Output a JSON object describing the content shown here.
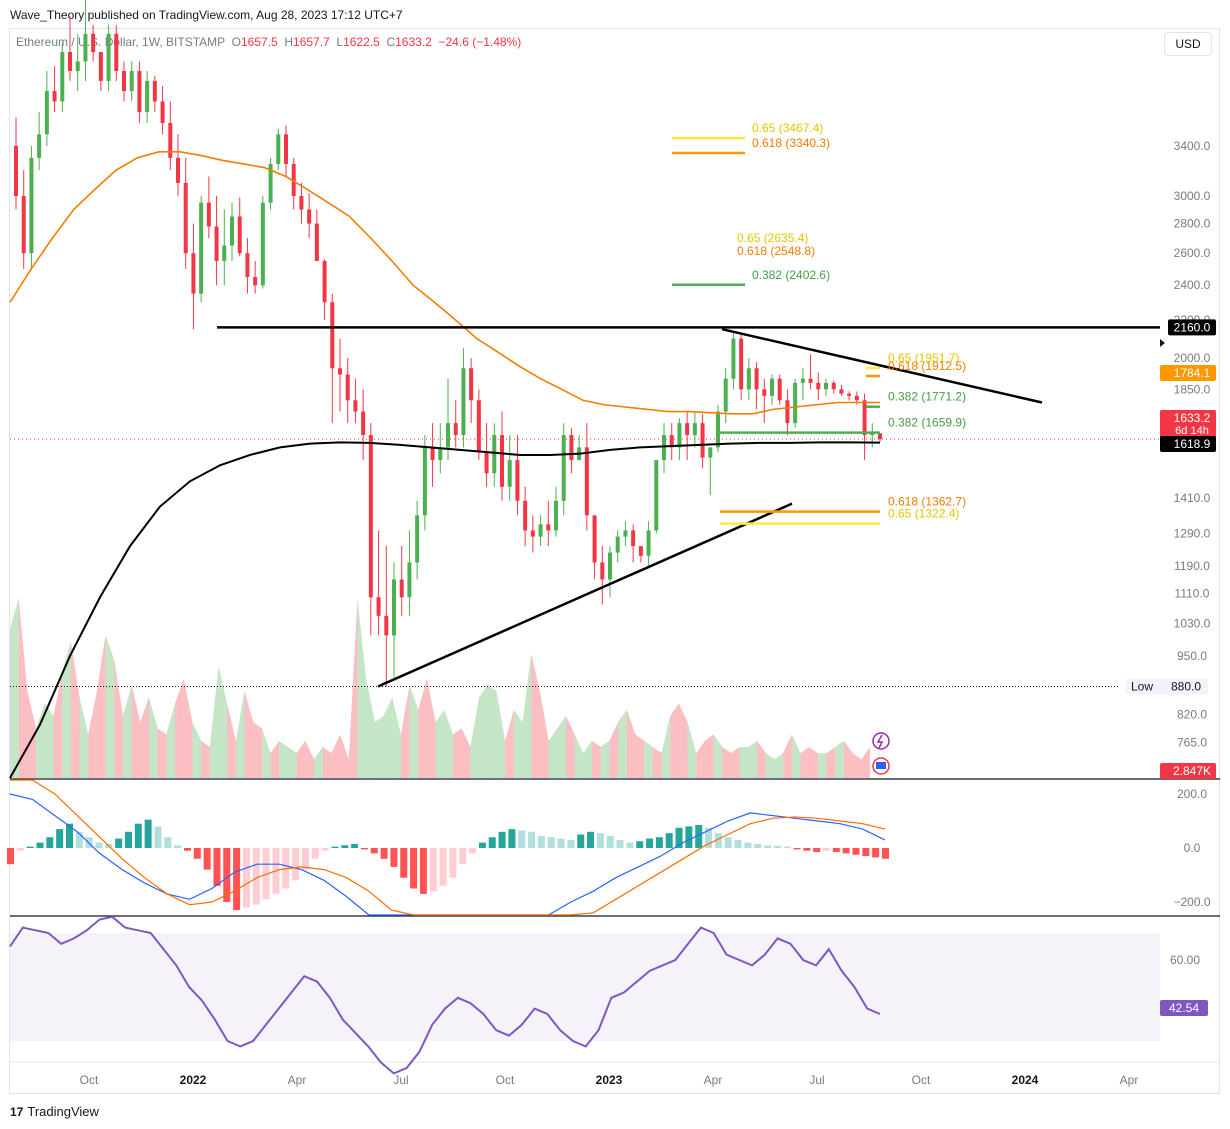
{
  "header": {
    "published": "Wave_Theory published on TradingView.com, Aug 28, 2023 17:12 UTC+7"
  },
  "legend": {
    "symbol": "Ethereum / U.S. Dollar, 1W, BITSTAMP",
    "o_label": "O",
    "o": "1657.5",
    "h_label": "H",
    "h": "1657.7",
    "l_label": "L",
    "l": "1622.5",
    "c_label": "C",
    "c": "1633.2",
    "change": "−24.6 (−1.48%)"
  },
  "currency_button": "USD",
  "brand": {
    "logo": "17",
    "name": "TradingView"
  },
  "colors": {
    "up": "#26a69a",
    "up_candle": "#4caf50",
    "down": "#f23645",
    "ma_orange": "#f57c00",
    "ma_black": "#000000",
    "fib_yellow": "#ffeb3b",
    "fib_orange": "#ff9800",
    "fib_green": "#4caf50",
    "macd_line": "#2962ff",
    "signal_line": "#ff6d00",
    "rsi": "#7e57c2"
  },
  "chart_data": {
    "type": "candlestick",
    "interval": "1W",
    "price_axis": {
      "scale": "log",
      "ticks": [
        "3400.0",
        "3000.0",
        "2800.0",
        "2600.0",
        "2400.0",
        "2200.0",
        "2000.0",
        "1850.0",
        "1410.0",
        "1290.0",
        "1190.0",
        "1110.0",
        "1030.0",
        "950.0",
        "880.0",
        "820.0",
        "765.0"
      ],
      "range": [
        700,
        4300
      ]
    },
    "time_axis": {
      "ticks": [
        "Oct",
        "2022",
        "Apr",
        "Jul",
        "Oct",
        "2023",
        "Apr",
        "Jul",
        "Oct",
        "2024",
        "Apr"
      ]
    },
    "candles_ohlc": [
      [
        3400,
        3650,
        2900,
        3000
      ],
      [
        3000,
        3200,
        2500,
        2600
      ],
      [
        2600,
        3400,
        2500,
        3300
      ],
      [
        3300,
        3700,
        3200,
        3500
      ],
      [
        3500,
        4100,
        3400,
        3900
      ],
      [
        3900,
        4150,
        3700,
        3800
      ],
      [
        3800,
        4400,
        3700,
        4300
      ],
      [
        4300,
        4700,
        4000,
        4100
      ],
      [
        4100,
        4500,
        3900,
        4200
      ],
      [
        4200,
        4900,
        4000,
        4500
      ],
      [
        4500,
        4600,
        4200,
        4300
      ],
      [
        4300,
        4300,
        3900,
        4000
      ],
      [
        4000,
        4600,
        3900,
        4500
      ],
      [
        4500,
        4600,
        4000,
        4100
      ],
      [
        4100,
        4200,
        3800,
        3900
      ],
      [
        3900,
        4200,
        3800,
        4100
      ],
      [
        4100,
        4200,
        3600,
        3700
      ],
      [
        3700,
        4100,
        3600,
        4000
      ],
      [
        4000,
        4050,
        3700,
        3800
      ],
      [
        3800,
        3950,
        3500,
        3600
      ],
      [
        3600,
        3800,
        3200,
        3300
      ],
      [
        3300,
        3500,
        3000,
        3100
      ],
      [
        3100,
        3300,
        2500,
        2600
      ],
      [
        2600,
        2800,
        2150,
        2350
      ],
      [
        2350,
        3000,
        2300,
        2950
      ],
      [
        2950,
        3150,
        2700,
        2780
      ],
      [
        2780,
        3000,
        2400,
        2550
      ],
      [
        2550,
        2900,
        2400,
        2650
      ],
      [
        2650,
        2950,
        2550,
        2850
      ],
      [
        2850,
        2990,
        2580,
        2600
      ],
      [
        2600,
        2700,
        2350,
        2450
      ],
      [
        2450,
        2550,
        2350,
        2400
      ],
      [
        2400,
        3000,
        2380,
        2950
      ],
      [
        2950,
        3300,
        2900,
        3250
      ],
      [
        3250,
        3550,
        3200,
        3500
      ],
      [
        3500,
        3580,
        3150,
        3250
      ],
      [
        3250,
        3300,
        2900,
        3000
      ],
      [
        3000,
        3100,
        2800,
        2900
      ],
      [
        2900,
        3020,
        2700,
        2800
      ],
      [
        2800,
        2900,
        2550,
        2550
      ],
      [
        2550,
        2560,
        2200,
        2300
      ],
      [
        2300,
        2350,
        1700,
        1950
      ],
      [
        1950,
        2100,
        1750,
        1920
      ],
      [
        1920,
        2000,
        1700,
        1800
      ],
      [
        1800,
        1900,
        1700,
        1750
      ],
      [
        1750,
        1850,
        1550,
        1650
      ],
      [
        1650,
        1700,
        1000,
        1100
      ],
      [
        1100,
        1300,
        1000,
        1050
      ],
      [
        1050,
        1250,
        880,
        1000
      ],
      [
        1000,
        1200,
        900,
        1150
      ],
      [
        1150,
        1250,
        1050,
        1100
      ],
      [
        1100,
        1300,
        1050,
        1200
      ],
      [
        1200,
        1400,
        1150,
        1350
      ],
      [
        1350,
        1650,
        1300,
        1600
      ],
      [
        1600,
        1700,
        1450,
        1550
      ],
      [
        1550,
        1700,
        1500,
        1600
      ],
      [
        1600,
        1900,
        1550,
        1700
      ],
      [
        1700,
        1800,
        1600,
        1650
      ],
      [
        1650,
        2050,
        1600,
        1950
      ],
      [
        1950,
        2000,
        1700,
        1800
      ],
      [
        1800,
        1850,
        1550,
        1580
      ],
      [
        1580,
        1700,
        1450,
        1500
      ],
      [
        1500,
        1700,
        1450,
        1650
      ],
      [
        1650,
        1750,
        1400,
        1450
      ],
      [
        1450,
        1650,
        1400,
        1550
      ],
      [
        1550,
        1650,
        1350,
        1400
      ],
      [
        1400,
        1450,
        1250,
        1300
      ],
      [
        1300,
        1350,
        1230,
        1280
      ],
      [
        1280,
        1350,
        1250,
        1320
      ],
      [
        1320,
        1400,
        1250,
        1300
      ],
      [
        1300,
        1450,
        1280,
        1400
      ],
      [
        1400,
        1700,
        1350,
        1650
      ],
      [
        1650,
        1680,
        1500,
        1550
      ],
      [
        1550,
        1650,
        1550,
        1600
      ],
      [
        1600,
        1700,
        1300,
        1350
      ],
      [
        1350,
        1350,
        1150,
        1200
      ],
      [
        1200,
        1250,
        1080,
        1150
      ],
      [
        1150,
        1250,
        1100,
        1230
      ],
      [
        1230,
        1300,
        1200,
        1280
      ],
      [
        1280,
        1330,
        1250,
        1300
      ],
      [
        1300,
        1320,
        1200,
        1250
      ],
      [
        1250,
        1250,
        1200,
        1220
      ],
      [
        1220,
        1330,
        1190,
        1300
      ],
      [
        1300,
        1400,
        1290,
        1550
      ],
      [
        1550,
        1700,
        1500,
        1650
      ],
      [
        1650,
        1700,
        1550,
        1600
      ],
      [
        1600,
        1720,
        1550,
        1700
      ],
      [
        1700,
        1750,
        1550,
        1650
      ],
      [
        1650,
        1750,
        1600,
        1700
      ],
      [
        1700,
        1740,
        1520,
        1560
      ],
      [
        1560,
        1600,
        1420,
        1600
      ],
      [
        1600,
        1780,
        1580,
        1750
      ],
      [
        1750,
        1950,
        1700,
        1900
      ],
      [
        1900,
        2140,
        1850,
        2100
      ],
      [
        2100,
        2130,
        1800,
        1850
      ],
      [
        1850,
        2000,
        1800,
        1950
      ],
      [
        1950,
        1980,
        1760,
        1850
      ],
      [
        1850,
        1900,
        1700,
        1820
      ],
      [
        1820,
        1920,
        1780,
        1900
      ],
      [
        1900,
        1920,
        1780,
        1800
      ],
      [
        1800,
        1850,
        1650,
        1700
      ],
      [
        1700,
        1900,
        1680,
        1880
      ],
      [
        1880,
        1950,
        1800,
        1900
      ],
      [
        1900,
        2020,
        1850,
        1880
      ],
      [
        1880,
        1930,
        1800,
        1850
      ],
      [
        1850,
        1900,
        1820,
        1880
      ],
      [
        1880,
        1890,
        1830,
        1850
      ],
      [
        1850,
        1870,
        1820,
        1830
      ],
      [
        1830,
        1840,
        1800,
        1820
      ],
      [
        1820,
        1840,
        1780,
        1800
      ],
      [
        1800,
        1830,
        1550,
        1650
      ],
      [
        1650,
        1700,
        1600,
        1660
      ],
      [
        1657.5,
        1657.7,
        1622.5,
        1633.2
      ]
    ],
    "ma_orange_values": [
      2300,
      2500,
      2700,
      2900,
      3050,
      3200,
      3300,
      3350,
      3350,
      3320,
      3280,
      3250,
      3220,
      3150,
      3050,
      2950,
      2850,
      2700,
      2550,
      2400,
      2300,
      2200,
      2100,
      2030,
      1960,
      1900,
      1850,
      1800,
      1780,
      1770,
      1760,
      1750,
      1750,
      1745,
      1740,
      1740,
      1760,
      1770,
      1780,
      1790,
      1790,
      1790
    ],
    "ma_black_values": [
      700,
      800,
      950,
      1100,
      1250,
      1380,
      1470,
      1530,
      1570,
      1600,
      1615,
      1620,
      1618,
      1610,
      1600,
      1590,
      1580,
      1570,
      1570,
      1575,
      1590,
      1600,
      1605,
      1610,
      1615,
      1618,
      1618,
      1620,
      1620,
      1619
    ],
    "fib_levels": [
      {
        "ratio": "0.65",
        "value": "3467.4",
        "label": "0.65 (3467.4)",
        "color": "#ffeb3b"
      },
      {
        "ratio": "0.618",
        "value": "3340.3",
        "label": "0.618 (3340.3)",
        "color": "#ff9800"
      },
      {
        "ratio": "0.65",
        "value": "2635.4",
        "label": "0.65 (2635.4)",
        "color": "#ffeb3b"
      },
      {
        "ratio": "0.618",
        "value": "2548.8",
        "label": "0.618 (2548.8)",
        "color": "#ff9800"
      },
      {
        "ratio": "0.382",
        "value": "2402.6",
        "label": "0.382 (2402.6)",
        "color": "#4caf50"
      },
      {
        "ratio": "0.65",
        "value": "1951.7",
        "label": "0.65 (1951.7)",
        "color": "#ffeb3b"
      },
      {
        "ratio": "0.618",
        "value": "1912.5",
        "label": "0.618 (1912.5)",
        "color": "#ff9800"
      },
      {
        "ratio": "0.382",
        "value": "1771.2",
        "label": "0.382 (1771.2)",
        "color": "#4caf50"
      },
      {
        "ratio": "0.382",
        "value": "1659.9",
        "label": "0.382 (1659.9)",
        "color": "#4caf50"
      },
      {
        "ratio": "0.618",
        "value": "1362.7",
        "label": "0.618 (1362.7)",
        "color": "#ff9800"
      },
      {
        "ratio": "0.65",
        "value": "1322.4",
        "label": "0.65 (1322.4)",
        "color": "#ffeb3b"
      }
    ],
    "horizontal_levels": [
      {
        "label": "2160.0",
        "value": 2160
      },
      {
        "label": "Low",
        "value_label": "880.0",
        "value": 880
      }
    ],
    "price_tags": [
      {
        "value": "1784.1",
        "color": "#ff9800"
      },
      {
        "value": "1633.2",
        "sub": "6d 14h",
        "color": "#f23645"
      },
      {
        "value": "1618.9",
        "color": "#000000"
      }
    ],
    "volume": {
      "label": "2.847K",
      "values": [
        2.4,
        2.9,
        1.4,
        0.8,
        1.2,
        1.0,
        1.7,
        2.2,
        1.3,
        0.7,
        1.4,
        2.3,
        1.9,
        1.0,
        1.5,
        0.9,
        1.3,
        0.8,
        0.7,
        1.2,
        1.6,
        0.9,
        0.6,
        0.5,
        1.8,
        1.2,
        0.6,
        1.4,
        0.9,
        0.8,
        0.4,
        0.6,
        0.5,
        0.4,
        0.6,
        0.3,
        0.5,
        0.4,
        0.7,
        0.3,
        2.9,
        1.6,
        0.9,
        1.0,
        1.3,
        0.7,
        1.5,
        1.1,
        1.6,
        0.9,
        1.1,
        0.7,
        0.8,
        0.5,
        1.3,
        1.5,
        1.4,
        0.6,
        1.1,
        0.9,
        2.0,
        1.4,
        0.6,
        0.8,
        1.0,
        0.7,
        0.4,
        0.6,
        0.5,
        0.6,
        0.9,
        1.1,
        0.7,
        0.6,
        0.5,
        0.4,
        1.0,
        1.2,
        0.9,
        0.4,
        0.6,
        0.7,
        0.5,
        0.4,
        0.5,
        0.5,
        0.6,
        0.4,
        0.3,
        0.4,
        0.7,
        0.4,
        0.5,
        0.4,
        0.4,
        0.5,
        0.6,
        0.4,
        0.3,
        0.5
      ],
      "up": [
        1,
        0,
        0,
        1,
        1,
        0,
        1,
        0,
        1,
        0,
        0,
        1,
        0,
        1,
        0,
        0,
        1,
        0,
        1,
        0,
        0,
        1,
        0,
        1,
        1,
        0,
        1,
        0,
        0,
        1,
        0,
        1,
        1,
        0,
        0,
        1,
        0,
        0,
        0,
        0,
        1,
        1,
        1,
        1,
        1,
        0,
        1,
        0,
        0,
        1,
        1,
        0,
        0,
        1,
        1,
        1,
        1,
        0,
        1,
        1,
        0,
        0,
        1,
        1,
        0,
        1,
        1,
        0,
        1,
        0,
        1,
        0,
        0,
        1,
        0,
        1,
        0,
        0,
        1,
        0,
        0,
        1,
        0,
        0,
        1,
        1,
        0,
        1,
        1,
        0,
        1,
        0,
        0,
        1,
        0,
        1,
        0,
        0,
        0,
        0
      ]
    },
    "macd": {
      "ticks": [
        "200.0",
        "0.0",
        "−200.0"
      ],
      "histogram": [
        -60,
        -10,
        5,
        20,
        40,
        70,
        90,
        60,
        40,
        20,
        15,
        35,
        60,
        90,
        105,
        80,
        40,
        10,
        -10,
        -40,
        -80,
        -140,
        -200,
        -230,
        -220,
        -210,
        -190,
        -170,
        -150,
        -120,
        -80,
        -40,
        -10,
        5,
        10,
        15,
        -5,
        -20,
        -40,
        -70,
        -110,
        -150,
        -170,
        -160,
        -140,
        -110,
        -60,
        -20,
        20,
        40,
        60,
        70,
        65,
        60,
        45,
        40,
        35,
        30,
        50,
        60,
        55,
        45,
        30,
        20,
        25,
        35,
        40,
        55,
        75,
        80,
        85,
        75,
        55,
        40,
        30,
        20,
        15,
        10,
        8,
        5,
        -5,
        -10,
        -15,
        -10,
        -15,
        -20,
        -25,
        -30,
        -35,
        -40
      ],
      "macd_line": [
        200,
        180,
        120,
        60,
        -20,
        -80,
        -130,
        -170,
        -190,
        -150,
        -90,
        -60,
        -60,
        -80,
        -120,
        -180,
        -260,
        -340,
        -420,
        -480,
        -500,
        -460,
        -400,
        -330,
        -260,
        -200,
        -160,
        -110,
        -70,
        -30,
        20,
        60,
        100,
        130,
        120,
        110,
        100,
        90,
        70,
        30
      ],
      "signal_line": [
        300,
        260,
        200,
        120,
        40,
        -40,
        -110,
        -170,
        -210,
        -200,
        -160,
        -110,
        -80,
        -70,
        -80,
        -110,
        -160,
        -230,
        -300,
        -370,
        -430,
        -460,
        -450,
        -410,
        -350,
        -290,
        -240,
        -190,
        -140,
        -90,
        -40,
        10,
        50,
        90,
        110,
        115,
        110,
        100,
        90,
        70
      ]
    },
    "rsi": {
      "value_label": "42.54",
      "ticks": [
        "60.00"
      ],
      "values": [
        65,
        72,
        71,
        70,
        66,
        68,
        71,
        75,
        76,
        72,
        71,
        70,
        64,
        58,
        50,
        45,
        38,
        30,
        28,
        30,
        36,
        42,
        48,
        54,
        52,
        46,
        38,
        33,
        28,
        22,
        18,
        20,
        26,
        36,
        42,
        46,
        44,
        40,
        34,
        32,
        36,
        42,
        40,
        34,
        30,
        28,
        34,
        46,
        48,
        52,
        56,
        58,
        60,
        66,
        72,
        70,
        62,
        60,
        58,
        62,
        68,
        66,
        60,
        58,
        64,
        56,
        50,
        42,
        40
      ]
    }
  }
}
